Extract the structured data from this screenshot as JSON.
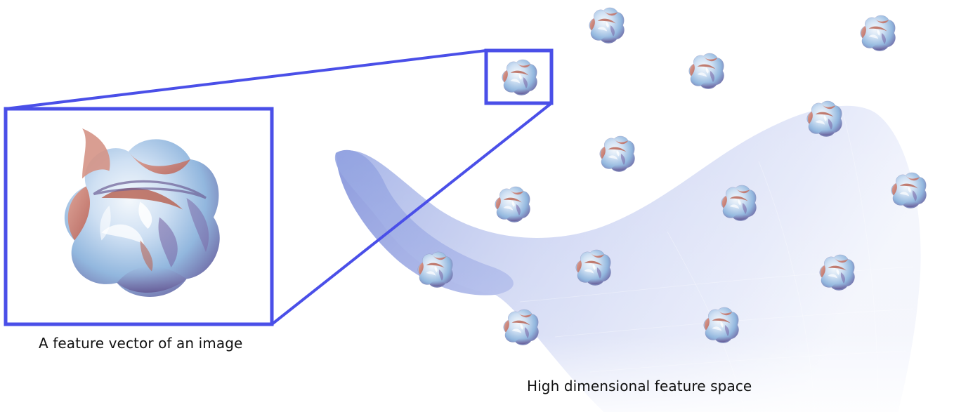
{
  "diagram": {
    "captions": {
      "feature_vector": "A feature vector of an image",
      "feature_space": "High dimensional feature space"
    },
    "colors": {
      "zoom_frame": "#4a4fe8",
      "manifold": "#8da0e0",
      "surface_light": "#dde8f6",
      "surface_blue": "#8fb6e0",
      "surface_shadow": "#6b6098",
      "surface_warm": "#cf7c6a"
    },
    "icons": {
      "point_glyph": "calabi-yau-surface-icon",
      "manifold": "curved-sheet-icon"
    },
    "point_count": 15
  }
}
